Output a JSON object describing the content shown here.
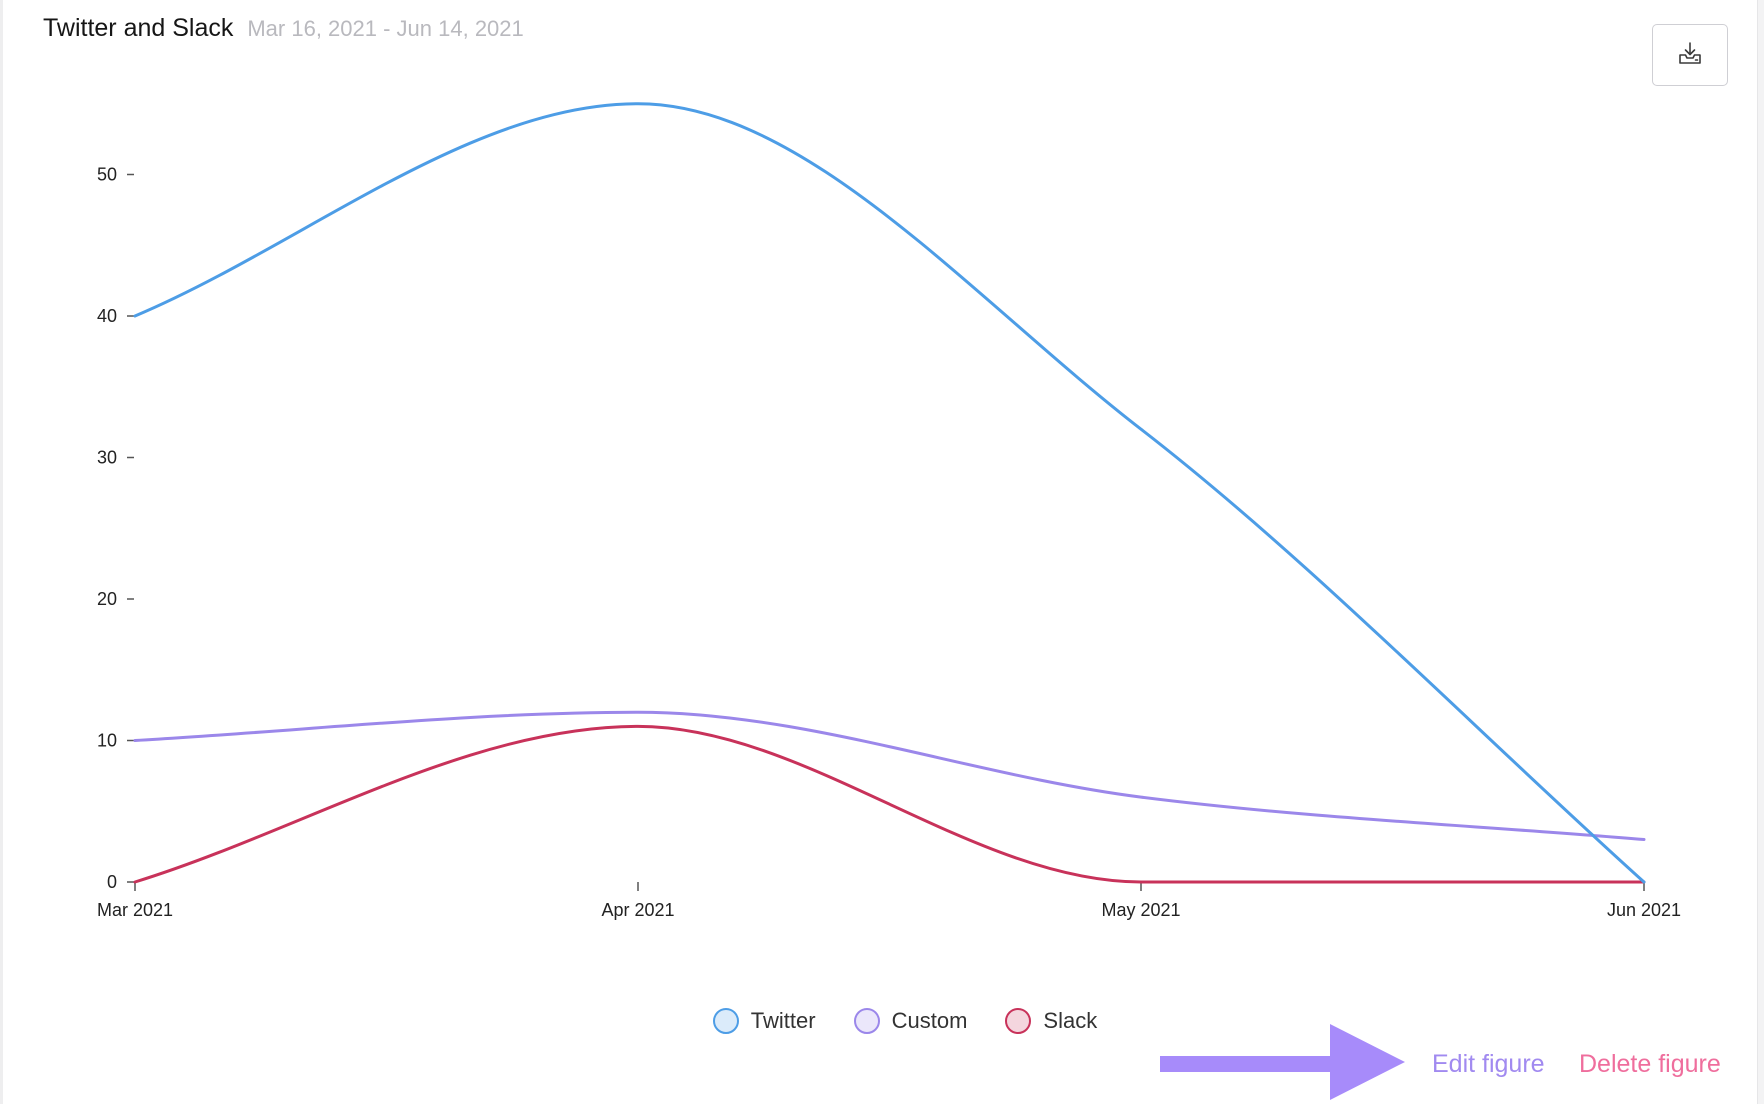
{
  "header": {
    "title": "Twitter and Slack",
    "date_range": "Mar 16, 2021 - Jun 14, 2021"
  },
  "actions": {
    "edit_label": "Edit figure",
    "delete_label": "Delete figure",
    "download_icon": "download-tray-icon"
  },
  "colors": {
    "twitter": "#4d9de6",
    "custom": "#9b87ea",
    "slack": "#c8325a",
    "edit_link": "#a18af0",
    "delete_link": "#ef6e9d",
    "arrow": "#a78bfa"
  },
  "chart_data": {
    "type": "line",
    "title": "Twitter and Slack",
    "subtitle": "Mar 16, 2021 - Jun 14, 2021",
    "xlabel": "",
    "ylabel": "",
    "categories": [
      "Mar 2021",
      "Apr 2021",
      "May 2021",
      "Jun 2021"
    ],
    "x": [
      "2021-03-01",
      "2021-04-01",
      "2021-05-01",
      "2021-06-01"
    ],
    "ylim": [
      0,
      55
    ],
    "yticks": [
      0,
      10,
      20,
      30,
      40,
      50
    ],
    "series": [
      {
        "name": "Twitter",
        "key": "twitter",
        "values": [
          40,
          55,
          32,
          0
        ]
      },
      {
        "name": "Custom",
        "key": "custom",
        "values": [
          10,
          12,
          6,
          3
        ]
      },
      {
        "name": "Slack",
        "key": "slack",
        "values": [
          0,
          11,
          0,
          0
        ]
      }
    ],
    "curve": "smooth",
    "grid": false,
    "legend_position": "bottom-center"
  }
}
